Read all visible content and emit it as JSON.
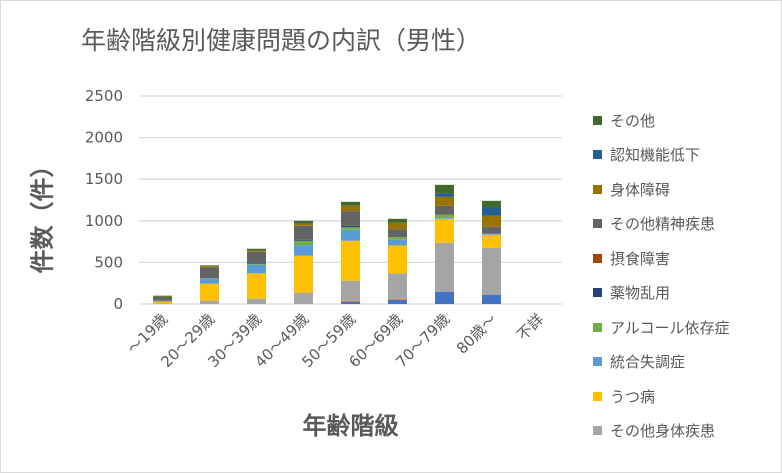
{
  "chart_data": {
    "type": "bar",
    "stacked": true,
    "title": "年齢階級別健康問題の内訳（男性）",
    "xlabel": "年齢階級",
    "ylabel": "件数（件）",
    "ylim": [
      0,
      2500
    ],
    "yticks": [
      0,
      500,
      1000,
      1500,
      2000,
      2500
    ],
    "grid": true,
    "legend_position": "right",
    "categories": [
      "～19歳",
      "20～29歳",
      "30～39歳",
      "40～49歳",
      "50～59歳",
      "60～69歳",
      "70～79歳",
      "80歳～",
      "不詳"
    ],
    "series": [
      {
        "color": "#4472C4",
        "values": [
          0,
          0,
          0,
          0,
          28,
          52,
          148,
          112,
          0
        ]
      },
      {
        "color": "#ED7D31",
        "values": [
          0,
          0,
          0,
          0,
          12,
          12,
          0,
          0,
          0
        ]
      },
      {
        "name": "その他身体疾患",
        "color": "#A5A5A5",
        "values": [
          5,
          40,
          64,
          136,
          240,
          304,
          588,
          564,
          0
        ]
      },
      {
        "name": "うつ病",
        "color": "#FFC000",
        "values": [
          25,
          204,
          304,
          444,
          480,
          336,
          288,
          156,
          0
        ]
      },
      {
        "name": "統合失調症",
        "color": "#5B9BD5",
        "values": [
          10,
          60,
          104,
          128,
          132,
          68,
          20,
          16,
          0
        ]
      },
      {
        "name": "アルコール依存症",
        "color": "#70AD47",
        "values": [
          0,
          4,
          12,
          52,
          32,
          32,
          28,
          0,
          0
        ]
      },
      {
        "name": "薬物乱用",
        "color": "#264478",
        "values": [
          0,
          0,
          12,
          12,
          16,
          0,
          0,
          0,
          0
        ]
      },
      {
        "name": "摂食障害",
        "color": "#9E480E",
        "values": [
          0,
          0,
          0,
          0,
          0,
          0,
          0,
          0,
          0
        ]
      },
      {
        "name": "その他精神疾患",
        "color": "#636363",
        "values": [
          45,
          132,
          132,
          168,
          176,
          96,
          108,
          80,
          0
        ]
      },
      {
        "name": "身体障碍",
        "color": "#997300",
        "values": [
          3,
          16,
          12,
          24,
          64,
          76,
          108,
          132,
          0
        ]
      },
      {
        "name": "認知機能低下",
        "color": "#255E91",
        "values": [
          0,
          0,
          0,
          0,
          0,
          0,
          44,
          100,
          0
        ]
      },
      {
        "name": "その他",
        "color": "#43682B",
        "values": [
          12,
          8,
          24,
          36,
          48,
          48,
          100,
          80,
          0
        ]
      }
    ]
  }
}
